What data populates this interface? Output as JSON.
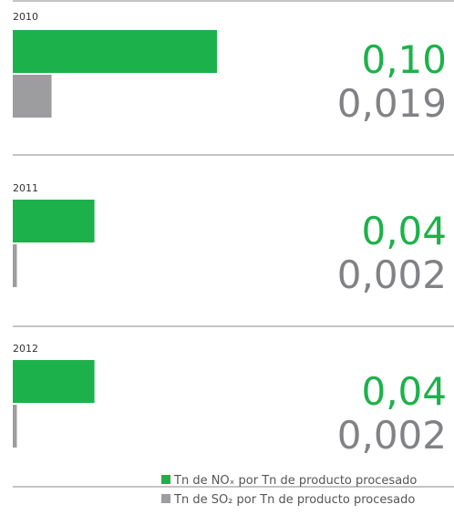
{
  "chart_data": {
    "type": "bar",
    "categories": [
      "2010",
      "2011",
      "2012"
    ],
    "series": [
      {
        "name": "Tn de NOₓ por Tn de producto procesado",
        "color": "#1db14b",
        "values": [
          0.1,
          0.04,
          0.04
        ],
        "value_labels": [
          "0,10",
          "0,04",
          "0,04"
        ]
      },
      {
        "name": "Tn de SO₂ por Tn de producto procesado",
        "color": "#9d9d9f",
        "values": [
          0.019,
          0.002,
          0.002
        ],
        "value_labels": [
          "0,019",
          "0,002",
          "0,002"
        ]
      }
    ]
  }
}
